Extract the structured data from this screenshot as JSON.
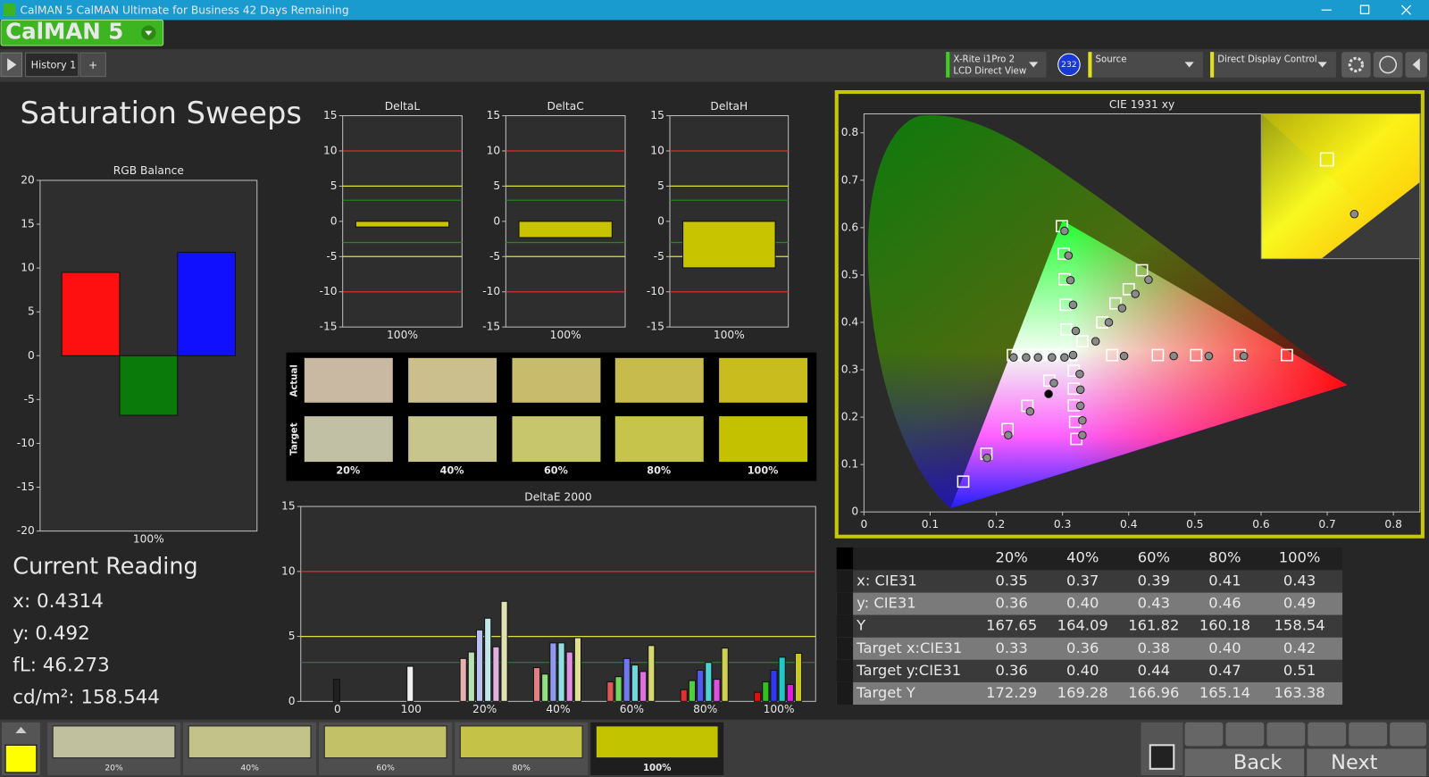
{
  "window": {
    "title": "CalMAN 5 CalMAN Ultimate for Business 42 Days Remaining"
  },
  "logo": "CalMAN 5",
  "tabs": [
    "History 1"
  ],
  "devices": [
    {
      "line1": "X-Rite i1Pro 2",
      "line2": "LCD Direct View",
      "badge": "232"
    },
    {
      "line1": "Source"
    },
    {
      "line1": "Direct Display Control"
    }
  ],
  "page_title": "Saturation Sweeps",
  "chart_data": [
    {
      "type": "bar",
      "title": "RGB Balance",
      "categories": [
        "100%"
      ],
      "series": [
        {
          "color": "#ff1010",
          "values": [
            9.5
          ]
        },
        {
          "color": "#0a7a0a",
          "values": [
            -6.8
          ]
        },
        {
          "color": "#1010ff",
          "values": [
            11.8
          ]
        }
      ],
      "ylim": [
        -20,
        20
      ],
      "yticks": [
        -20,
        -15,
        -10,
        -5,
        0,
        5,
        10,
        15,
        20
      ]
    },
    {
      "type": "bar",
      "title": "DeltaL",
      "categories": [
        "100%"
      ],
      "values": [
        -0.8
      ],
      "color": "#c8c400",
      "ylim": [
        -15,
        15
      ],
      "yticks": [
        -15,
        -10,
        -5,
        0,
        5,
        10,
        15
      ],
      "reference_lines": [
        {
          "value": 10,
          "color": "#d83030"
        },
        {
          "value": -10,
          "color": "#d83030"
        },
        {
          "value": 5,
          "color": "#e0e040"
        },
        {
          "value": -5,
          "color": "#e0e040"
        },
        {
          "value": 3,
          "color": "#1f8a1f"
        },
        {
          "value": -3,
          "color": "#1f8a1f"
        }
      ]
    },
    {
      "type": "bar",
      "title": "DeltaC",
      "categories": [
        "100%"
      ],
      "values": [
        -2.3
      ],
      "color": "#c8c400",
      "ylim": [
        -15,
        15
      ],
      "yticks": [
        -15,
        -10,
        -5,
        0,
        5,
        10,
        15
      ],
      "reference_lines": [
        {
          "value": 10,
          "color": "#d83030"
        },
        {
          "value": -10,
          "color": "#d83030"
        },
        {
          "value": 5,
          "color": "#e0e040"
        },
        {
          "value": -5,
          "color": "#e0e040"
        },
        {
          "value": 3,
          "color": "#1f8a1f"
        },
        {
          "value": -3,
          "color": "#1f8a1f"
        }
      ]
    },
    {
      "type": "bar",
      "title": "DeltaH",
      "categories": [
        "100%"
      ],
      "values": [
        -6.6
      ],
      "color": "#c8c400",
      "ylim": [
        -15,
        15
      ],
      "yticks": [
        -15,
        -10,
        -5,
        0,
        5,
        10,
        15
      ],
      "reference_lines": [
        {
          "value": 10,
          "color": "#d83030"
        },
        {
          "value": -10,
          "color": "#d83030"
        },
        {
          "value": 5,
          "color": "#e0e040"
        },
        {
          "value": -5,
          "color": "#e0e040"
        },
        {
          "value": 3,
          "color": "#1f8a1f"
        },
        {
          "value": -3,
          "color": "#1f8a1f"
        }
      ]
    },
    {
      "type": "bar",
      "title": "DeltaE 2000",
      "categories": [
        "0",
        "100",
        "20%",
        "40%",
        "60%",
        "80%",
        "100%"
      ],
      "series": [
        {
          "values": [
            1.7,
            2.7,
            null,
            null,
            null,
            null,
            null
          ],
          "colors": [
            "#202020",
            "#f0f0f0",
            null,
            null,
            null,
            null,
            null
          ]
        },
        {
          "values": [
            null,
            null,
            3.3,
            2.6,
            1.5,
            0.9,
            0.7
          ],
          "colors": [
            null,
            null,
            "#e8b0b0",
            "#e08080",
            "#e05858",
            "#e03030",
            "#e01010"
          ]
        },
        {
          "values": [
            null,
            null,
            3.8,
            2.1,
            1.9,
            1.6,
            1.5
          ],
          "colors": [
            null,
            null,
            "#b8e0b0",
            "#90e080",
            "#70d860",
            "#50d040",
            "#30c020"
          ]
        },
        {
          "values": [
            null,
            null,
            5.5,
            4.5,
            3.3,
            2.4,
            2.4
          ],
          "colors": [
            null,
            null,
            "#b8c0f0",
            "#9098f0",
            "#7078f0",
            "#5058f0",
            "#3038f0"
          ]
        },
        {
          "values": [
            null,
            null,
            6.4,
            4.5,
            2.8,
            3.0,
            3.4
          ],
          "colors": [
            null,
            null,
            "#c0e8e8",
            "#90e0e0",
            "#70d8d8",
            "#50d0d0",
            "#20c8c8"
          ]
        },
        {
          "values": [
            null,
            null,
            4.2,
            3.8,
            2.3,
            1.7,
            1.3
          ],
          "colors": [
            null,
            null,
            "#e0b0e0",
            "#e090e0",
            "#e070e0",
            "#e050e0",
            "#e020e0"
          ]
        },
        {
          "values": [
            null,
            null,
            7.7,
            4.9,
            4.3,
            4.1,
            3.7
          ],
          "colors": [
            null,
            null,
            "#e0e0b0",
            "#e0e090",
            "#d8d870",
            "#d0d050",
            "#c8c820"
          ]
        }
      ],
      "ylim": [
        0,
        15
      ],
      "yticks": [
        0,
        5,
        10,
        15
      ],
      "reference_lines": [
        {
          "value": 10,
          "color": "#d83030"
        },
        {
          "value": 5,
          "color": "#e0e040"
        },
        {
          "value": 3,
          "color": "#1f8a1f"
        }
      ]
    },
    {
      "type": "scatter",
      "title": "CIE 1931 xy",
      "xlim": [
        0,
        0.84
      ],
      "ylim": [
        0,
        0.84
      ],
      "xticks": [
        0,
        0.1,
        0.2,
        0.3,
        0.4,
        0.5,
        0.6,
        0.7,
        0.8
      ],
      "yticks": [
        0,
        0.1,
        0.2,
        0.3,
        0.4,
        0.5,
        0.6,
        0.7,
        0.8
      ],
      "gamut": {
        "x": [
          0.73,
          0.3,
          0.131
        ],
        "y": [
          0.268,
          0.615,
          0.008
        ]
      },
      "series": [
        {
          "marker": "square",
          "color": "#ffffff",
          "x": [
            0.15,
            0.185,
            0.217,
            0.247,
            0.28,
            0.313,
            0.375,
            0.444,
            0.502,
            0.568,
            0.639,
            0.306,
            0.305,
            0.303,
            0.302,
            0.299,
            0.225,
            0.245,
            0.265,
            0.285,
            0.317,
            0.317,
            0.317,
            0.319,
            0.321,
            0.33,
            0.36,
            0.38,
            0.4,
            0.42
          ],
          "y": [
            0.064,
            0.123,
            0.175,
            0.224,
            0.277,
            0.331,
            0.331,
            0.331,
            0.331,
            0.331,
            0.331,
            0.385,
            0.437,
            0.491,
            0.545,
            0.603,
            0.331,
            0.331,
            0.331,
            0.331,
            0.298,
            0.26,
            0.225,
            0.19,
            0.154,
            0.36,
            0.4,
            0.44,
            0.47,
            0.51
          ]
        },
        {
          "marker": "circle",
          "color": "#8a8a8a",
          "x": [
            0.186,
            0.218,
            0.251,
            0.287,
            0.316,
            0.393,
            0.468,
            0.521,
            0.574,
            0.32,
            0.316,
            0.312,
            0.309,
            0.303,
            0.226,
            0.245,
            0.263,
            0.284,
            0.303,
            0.326,
            0.327,
            0.327,
            0.33,
            0.33,
            0.35,
            0.37,
            0.39,
            0.41,
            0.43
          ],
          "y": [
            0.114,
            0.162,
            0.212,
            0.272,
            0.331,
            0.329,
            0.329,
            0.329,
            0.329,
            0.382,
            0.437,
            0.489,
            0.541,
            0.593,
            0.326,
            0.326,
            0.326,
            0.326,
            0.326,
            0.291,
            0.258,
            0.224,
            0.193,
            0.162,
            0.36,
            0.4,
            0.43,
            0.46,
            0.49
          ]
        },
        {
          "marker": "circle",
          "color": "#000000",
          "x": [
            0.279
          ],
          "y": [
            0.249
          ]
        }
      ]
    }
  ],
  "swatches": {
    "row_labels": [
      "Actual",
      "Target"
    ],
    "columns": [
      "20%",
      "40%",
      "60%",
      "80%",
      "100%"
    ],
    "actual": [
      "#c9b9a2",
      "#cbbf8e",
      "#c9bb6c",
      "#c8bb4e",
      "#c8bc1e"
    ],
    "target": [
      "#c2c0a4",
      "#c7c58c",
      "#c8c66c",
      "#c6c44a",
      "#c4c100"
    ]
  },
  "table": {
    "header": [
      "20%",
      "40%",
      "60%",
      "80%",
      "100%"
    ],
    "rows": [
      [
        "x: CIE31",
        "0.35",
        "0.37",
        "0.39",
        "0.41",
        "0.43"
      ],
      [
        "y: CIE31",
        "0.36",
        "0.40",
        "0.43",
        "0.46",
        "0.49"
      ],
      [
        "Y",
        "167.65",
        "164.09",
        "161.82",
        "160.18",
        "158.54"
      ],
      [
        "Target x:CIE31",
        "0.33",
        "0.36",
        "0.38",
        "0.40",
        "0.42"
      ],
      [
        "Target y:CIE31",
        "0.36",
        "0.40",
        "0.44",
        "0.47",
        "0.51"
      ],
      [
        "Target Y",
        "172.29",
        "169.28",
        "166.96",
        "165.14",
        "163.38"
      ]
    ]
  },
  "current_reading": {
    "title": "Current Reading",
    "lines": [
      "x: 0.4314",
      "y: 0.492",
      "fL: 46.273",
      "cd/m²: 158.544"
    ]
  },
  "bottom_strip": {
    "labels": [
      "20%",
      "40%",
      "60%",
      "80%",
      "100%"
    ],
    "colors": [
      "#c0bf9e",
      "#c3c288",
      "#c2c168",
      "#c4c347",
      "#c4c300"
    ]
  },
  "nav": {
    "back": "Back",
    "next": "Next"
  }
}
